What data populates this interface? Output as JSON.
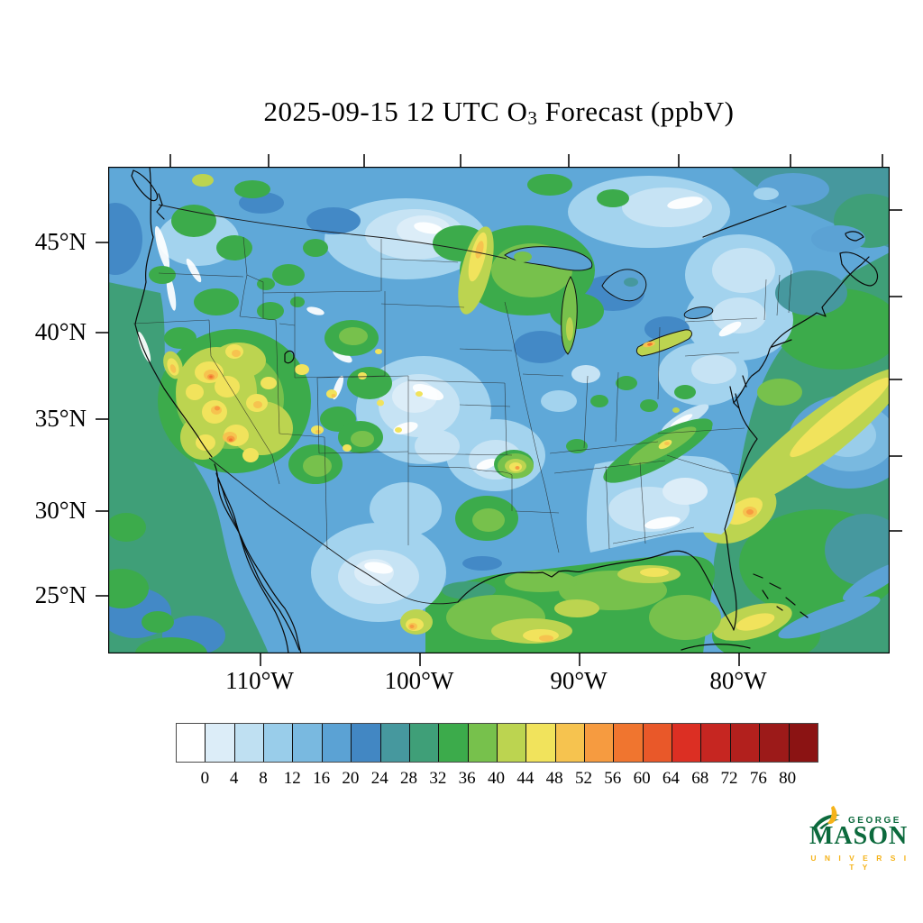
{
  "title": {
    "prefix": "2025-09-15 12 UTC O",
    "subscript": "3",
    "suffix": " Forecast (ppbV)"
  },
  "map": {
    "lat_labels": [
      "45°N",
      "40°N",
      "35°N",
      "30°N",
      "25°N"
    ],
    "lon_labels": [
      "110°W",
      "100°W",
      "90°W",
      "80°W"
    ]
  },
  "colorbar": {
    "tick_labels": [
      "0",
      "4",
      "8",
      "12",
      "16",
      "20",
      "24",
      "28",
      "32",
      "36",
      "40",
      "44",
      "48",
      "52",
      "56",
      "60",
      "64",
      "68",
      "72",
      "76",
      "80"
    ],
    "cell_colors": [
      "#FFFFFF",
      "#DCEDF8",
      "#BFE0F2",
      "#99CDEA",
      "#79B9E0",
      "#5BA2D4",
      "#4287C3",
      "#46989E",
      "#3F9F78",
      "#3CAB4B",
      "#77C14C",
      "#BCD450",
      "#F1E35C",
      "#F6C34F",
      "#F69B40",
      "#F0752F",
      "#E95829",
      "#DC2F23",
      "#C62621",
      "#B2201D",
      "#9C1A19",
      "#8B1313"
    ]
  },
  "logo": {
    "top": "GEORGE",
    "middle": "MASON",
    "bottom": "U N I V E R S I T Y",
    "green_color": "#0C6A3D",
    "gold_color": "#F5B31A"
  },
  "chart_data": {
    "type": "heatmap",
    "subtype": "filled_contour_map",
    "title": "2025-09-15 12 UTC O3 Forecast (ppbV)",
    "variable": "O3",
    "units": "ppbV",
    "contour_levels": [
      0,
      4,
      8,
      12,
      16,
      20,
      24,
      28,
      32,
      36,
      40,
      44,
      48,
      52,
      56,
      60,
      64,
      68,
      72,
      76,
      80
    ],
    "palette": [
      "#FFFFFF",
      "#DCEDF8",
      "#BFE0F2",
      "#99CDEA",
      "#79B9E0",
      "#5BA2D4",
      "#4287C3",
      "#46989E",
      "#3F9F78",
      "#3CAB4B",
      "#77C14C",
      "#BCD450",
      "#F1E35C",
      "#F6C34F",
      "#F69B40",
      "#F0752F",
      "#E95829",
      "#DC2F23",
      "#C62621",
      "#B2201D",
      "#9C1A19",
      "#8B1313"
    ],
    "lat_ticks": [
      "45°N",
      "40°N",
      "35°N",
      "30°N",
      "25°N"
    ],
    "lon_ticks": [
      "110°W",
      "100°W",
      "90°W",
      "80°W"
    ],
    "region": "Contiguous United States with southern Canada, northern Mexico, Gulf of Mexico and western Atlantic",
    "legend_position": "bottom",
    "notable_features": [
      {
        "area": "Nevada / eastern California / Great Basin hotspot cluster",
        "approx_value_ppbv": "44-60"
      },
      {
        "area": "Scattered Utah / Colorado / New Mexico spots",
        "approx_value_ppbv": "40-52"
      },
      {
        "area": "Gulf of Mexico",
        "approx_value_ppbv": "32-44"
      },
      {
        "area": "Western Atlantic diagonal streak off East Coast",
        "approx_value_ppbv": "36-48"
      },
      {
        "area": "Lake Erie hotspot",
        "approx_value_ppbv": "44-56"
      },
      {
        "area": "Lake Michigan",
        "approx_value_ppbv": "36-44"
      },
      {
        "area": "Central / eastern U.S. interior",
        "approx_value_ppbv": "8-24"
      },
      {
        "area": "Pacific Ocean off California",
        "approx_value_ppbv": "28-36"
      },
      {
        "area": "Appalachian / Tennessee ridge streak",
        "approx_value_ppbv": "36-48"
      }
    ]
  }
}
